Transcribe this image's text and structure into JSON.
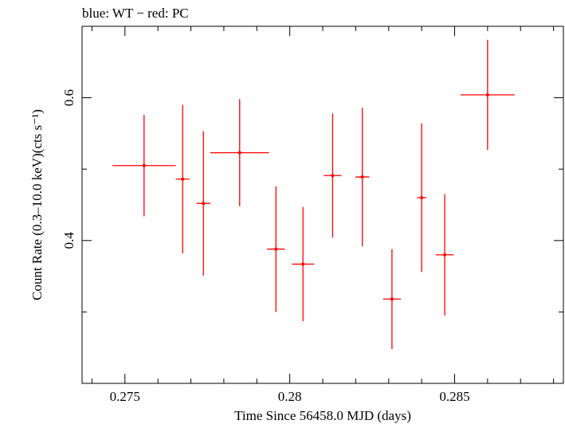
{
  "chart_data": {
    "type": "scatter",
    "title": "blue: WT − red: PC",
    "xlabel": "Time Since 56458.0 MJD (days)",
    "ylabel": "Count Rate (0.3–10.0 keV)(cts s⁻¹)",
    "xlim": [
      0.2737,
      0.2883
    ],
    "ylim": [
      0.2,
      0.7
    ],
    "x_ticks": [
      {
        "value": 0.275,
        "label": "0.275"
      },
      {
        "value": 0.28,
        "label": "0.28"
      },
      {
        "value": 0.285,
        "label": "0.285"
      }
    ],
    "y_ticks": [
      {
        "value": 0.4,
        "label": "0.4"
      },
      {
        "value": 0.6,
        "label": "0.6"
      }
    ],
    "x_minor_step": 0.001,
    "y_minor_step": 0.1,
    "series": [
      {
        "color": "#ff0000",
        "points": [
          {
            "x": 0.27558,
            "xerr": 0.00096,
            "y": 0.505,
            "yerr": 0.071
          },
          {
            "x": 0.27675,
            "xerr": 0.00021,
            "y": 0.486,
            "yerr": 0.104
          },
          {
            "x": 0.27738,
            "xerr": 0.00021,
            "y": 0.452,
            "yerr": 0.101
          },
          {
            "x": 0.27848,
            "xerr": 0.00089,
            "y": 0.523,
            "yerr": 0.075
          },
          {
            "x": 0.27958,
            "xerr": 0.00027,
            "y": 0.388,
            "yerr": 0.088
          },
          {
            "x": 0.2804,
            "xerr": 0.00034,
            "y": 0.367,
            "yerr": 0.08
          },
          {
            "x": 0.2813,
            "xerr": 0.00027,
            "y": 0.491,
            "yerr": 0.087
          },
          {
            "x": 0.2822,
            "xerr": 0.00021,
            "y": 0.489,
            "yerr": 0.097
          },
          {
            "x": 0.2831,
            "xerr": 0.00027,
            "y": 0.318,
            "yerr": 0.07
          },
          {
            "x": 0.284,
            "xerr": 0.00014,
            "y": 0.46,
            "yerr": 0.104
          },
          {
            "x": 0.2847,
            "xerr": 0.00027,
            "y": 0.38,
            "yerr": 0.085
          },
          {
            "x": 0.286,
            "xerr": 0.00082,
            "y": 0.604,
            "yerr": 0.077
          }
        ]
      }
    ]
  }
}
